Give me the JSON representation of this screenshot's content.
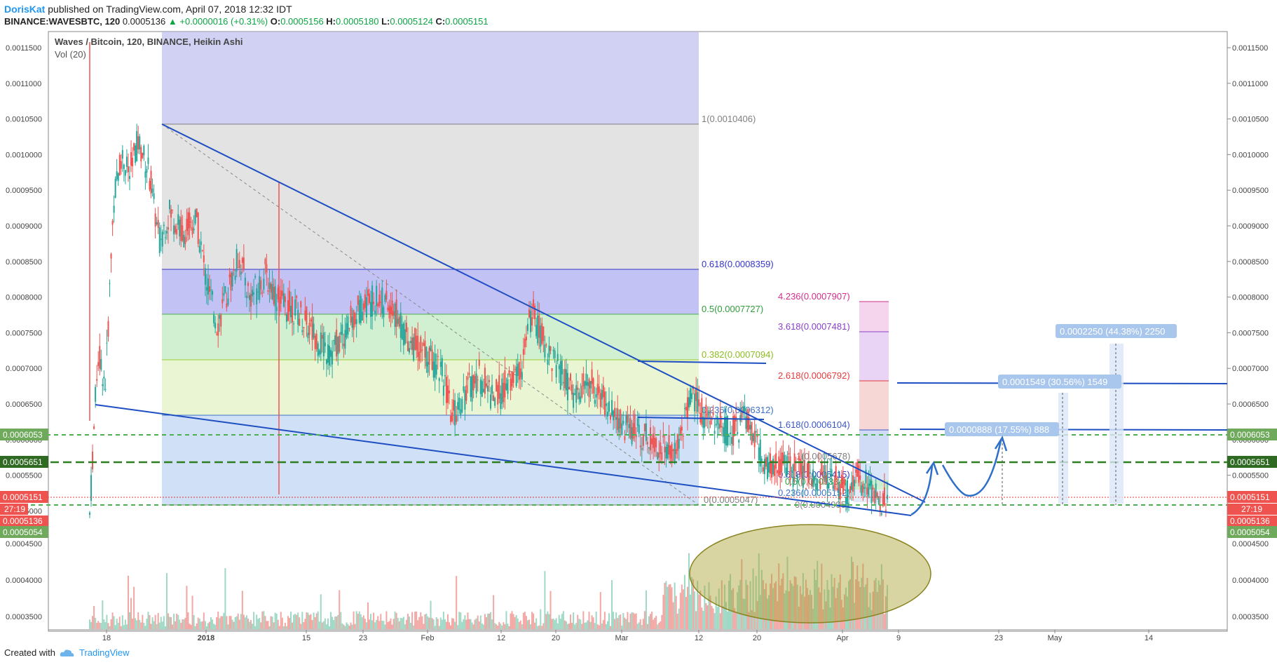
{
  "header": {
    "author": "DorisKat",
    "published": "published on TradingView.com, April 07, 2018 12:32 IDT"
  },
  "ticker": {
    "symbol": "BINANCE:WAVESBTC, 120",
    "last": "0.0005136",
    "change": "▲ +0.0000016 (+0.31%)",
    "o_label": "O:",
    "o": "0.0005156",
    "h_label": "H:",
    "h": "0.0005180",
    "l_label": "L:",
    "l": "0.0005124",
    "c_label": "C:",
    "c": "0.0005151"
  },
  "legend": {
    "title": "Waves / Bitcoin, 120, BINANCE, Heikin Ashi",
    "volume": "Vol (20)"
  },
  "footer": {
    "created_with": "Created with",
    "brand": "TradingView"
  },
  "colors": {
    "up": "#26a69a",
    "down": "#ef5350",
    "trendline": "#1e4fc2",
    "fib_purple": "#b3b3f0",
    "fib_gray": "#dedede",
    "fib_green": "#c8ecc8",
    "fib_lime": "#e4f2c8",
    "fib_blue": "#c6d8f3",
    "ellipse": "#a8a232"
  },
  "chart_data": {
    "type": "candlestick",
    "y_axis_ticks": [
      "0.0011500",
      "0.0011000",
      "0.0010500",
      "0.0010000",
      "0.0009500",
      "0.0009000",
      "0.0008500",
      "0.0008000",
      "0.0007500",
      "0.0007000",
      "0.0006500",
      "0.0006000",
      "0.0005500",
      "0.0005000",
      "0.0004500",
      "0.0004000",
      "0.0003500"
    ],
    "x_axis_ticks": [
      "18",
      "2018",
      "15",
      "23",
      "Feb",
      "12",
      "20",
      "Mar",
      "12",
      "20",
      "Apr",
      "9",
      "23",
      "May",
      "14"
    ],
    "price_labels": {
      "p1": "0.0006053",
      "p2": "0.0005651",
      "p3": "0.0005151",
      "timer": "27:19",
      "p4": "0.0005136",
      "p5": "0.0005054"
    },
    "fib_retracement_main": [
      "1(0.0010406)",
      "0.618(0.0008359)",
      "0.5(0.0007727)",
      "0.382(0.0007094)",
      "0.236(0.0006312)",
      "0(0.0005047)"
    ],
    "fib_retracement_small": [
      "1(0.0005678)",
      "0.618(0.0005415)",
      "0.5(0.0005334)",
      "0.236(0.0005152)",
      "0(0.0004995)"
    ],
    "fib_extension": [
      "4.236(0.0007907)",
      "3.618(0.0007481)",
      "2.618(0.0006792)",
      "1.618(0.0006104)"
    ],
    "projections": [
      "0.0000888 (17.55%) 888",
      "0.0001549 (30.56%) 1549",
      "0.0002250 (44.38%) 2250"
    ],
    "price_path": [
      [
        0,
        0.000495
      ],
      [
        3,
        0.00072
      ],
      [
        6,
        0.00068
      ],
      [
        9,
        0.00094
      ],
      [
        12,
        0.001
      ],
      [
        15,
        0.00097
      ],
      [
        18,
        0.00102
      ],
      [
        22,
        0.00098
      ],
      [
        26,
        0.00088
      ],
      [
        30,
        0.00092
      ],
      [
        35,
        0.00089
      ],
      [
        40,
        0.00091
      ],
      [
        44,
        0.00082
      ],
      [
        48,
        0.00076
      ],
      [
        52,
        0.00081
      ],
      [
        56,
        0.00086
      ],
      [
        60,
        0.0008
      ],
      [
        66,
        0.00083
      ],
      [
        72,
        0.00079
      ],
      [
        78,
        0.00078
      ],
      [
        84,
        0.00075
      ],
      [
        90,
        0.00072
      ],
      [
        96,
        0.00075
      ],
      [
        102,
        0.00079
      ],
      [
        108,
        0.0008
      ],
      [
        114,
        0.00078
      ],
      [
        120,
        0.00074
      ],
      [
        126,
        0.00072
      ],
      [
        132,
        0.0007
      ],
      [
        136,
        0.00063
      ],
      [
        140,
        0.00066
      ],
      [
        146,
        0.00069
      ],
      [
        152,
        0.00066
      ],
      [
        158,
        0.00068
      ],
      [
        162,
        0.0007
      ],
      [
        166,
        0.00078
      ],
      [
        170,
        0.00074
      ],
      [
        176,
        0.0007
      ],
      [
        182,
        0.00066
      ],
      [
        188,
        0.00068
      ],
      [
        194,
        0.00065
      ],
      [
        200,
        0.00062
      ],
      [
        206,
        0.00061
      ],
      [
        212,
        0.0006
      ],
      [
        218,
        0.00058
      ],
      [
        222,
        0.0006
      ],
      [
        225,
        0.00066
      ],
      [
        230,
        0.00064
      ],
      [
        236,
        0.00062
      ],
      [
        242,
        0.00061
      ],
      [
        246,
        0.00063
      ],
      [
        250,
        0.0006
      ],
      [
        254,
        0.00056
      ],
      [
        258,
        0.00057
      ],
      [
        262,
        0.00056
      ],
      [
        268,
        0.00055
      ],
      [
        274,
        0.00055
      ],
      [
        280,
        0.00054
      ],
      [
        284,
        0.00052
      ],
      [
        288,
        0.00055
      ],
      [
        292,
        0.00054
      ],
      [
        296,
        0.00052
      ],
      [
        300,
        0.00051
      ]
    ]
  }
}
